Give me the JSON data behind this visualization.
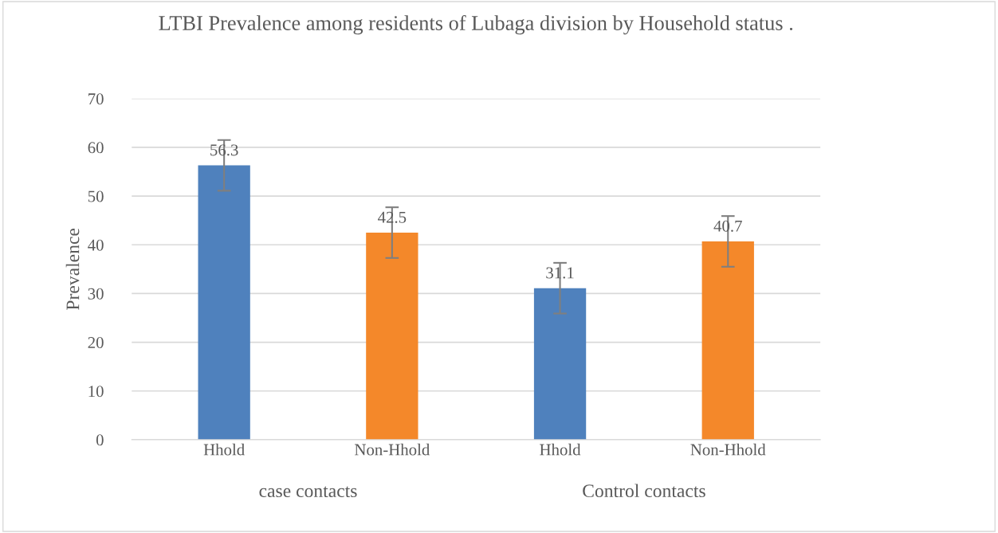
{
  "chart_data": {
    "type": "bar",
    "title": "LTBI Prevalence among residents of Lubaga division by Household status .",
    "ylabel": "Prevalence",
    "categories": [
      "Hhold",
      "Non-Hhold",
      "Hhold",
      "Non-Hhold"
    ],
    "values": [
      56.3,
      42.5,
      31.1,
      40.7
    ],
    "colors": [
      "#4f81bd",
      "#f4882a",
      "#4f81bd",
      "#f4882a"
    ],
    "errors": [
      5.2,
      5.2,
      5.2,
      5.2
    ],
    "data_labels": true,
    "annotations": [
      "case contacts",
      "Control contacts"
    ],
    "ylim": [
      0,
      70
    ],
    "yticks": [
      0,
      10,
      20,
      30,
      40,
      50,
      60,
      70
    ],
    "grid": "y",
    "legend": false
  }
}
